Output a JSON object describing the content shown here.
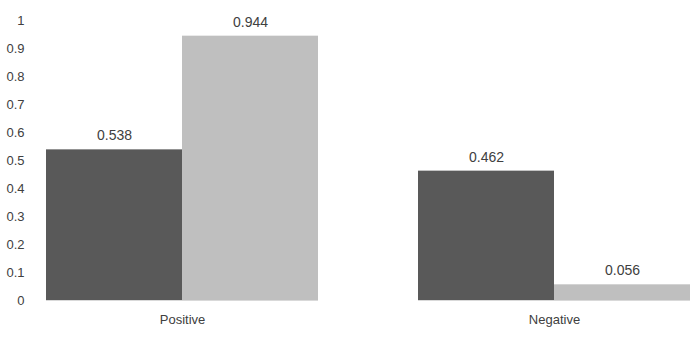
{
  "chart_data": {
    "type": "bar",
    "categories": [
      "Positive",
      "Negative"
    ],
    "series": [
      {
        "color": "#595959",
        "values": [
          0.538,
          0.462
        ]
      },
      {
        "color": "#bfbfbf",
        "values": [
          0.944,
          0.056
        ]
      }
    ],
    "ylim": [
      0,
      1
    ],
    "yticks": [
      0,
      0.1,
      0.2,
      0.3,
      0.4,
      0.5,
      0.6,
      0.7,
      0.8,
      0.9,
      1
    ],
    "grid": false,
    "data_labels": true
  }
}
